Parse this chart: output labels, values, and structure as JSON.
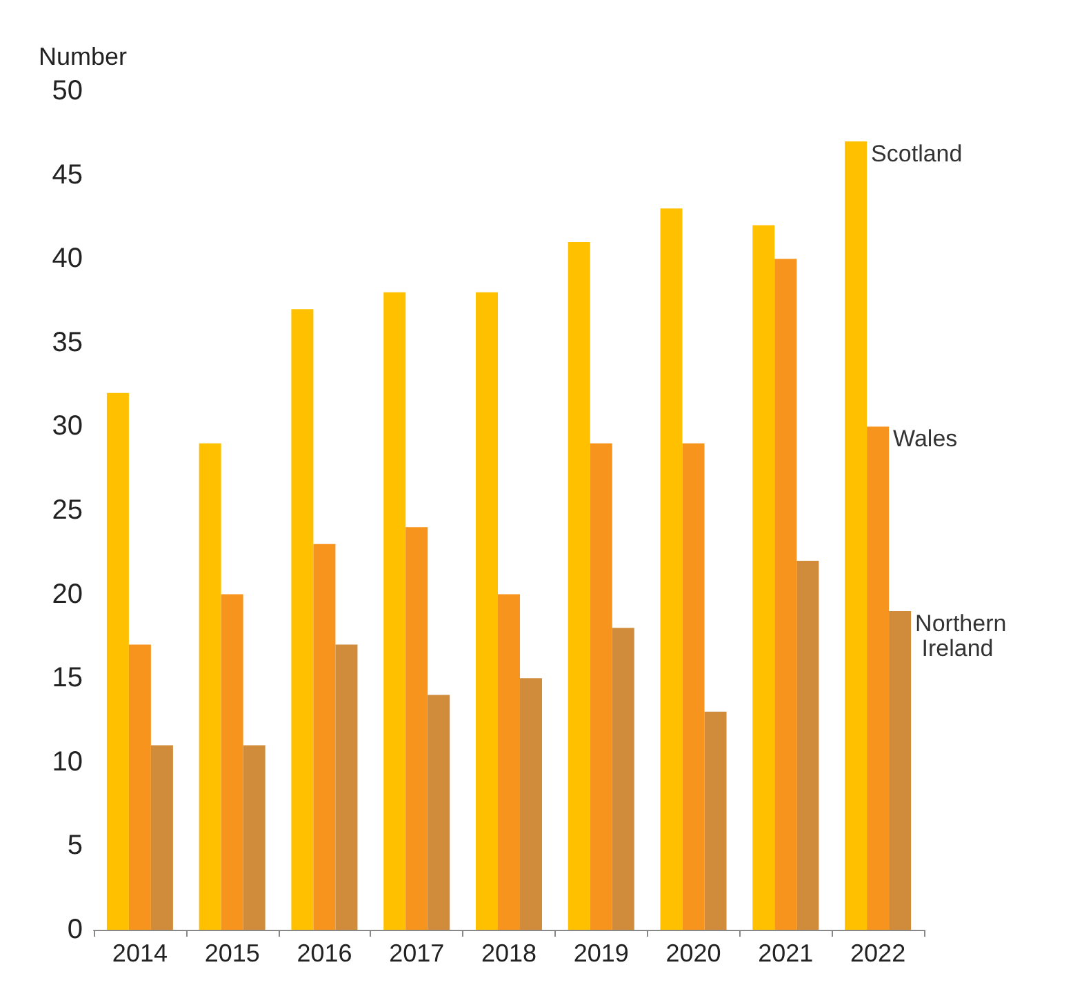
{
  "chart_data": {
    "type": "bar",
    "ylabel": "Number",
    "categories": [
      "2014",
      "2015",
      "2016",
      "2017",
      "2018",
      "2019",
      "2020",
      "2021",
      "2022"
    ],
    "series": [
      {
        "name": "Scotland",
        "color": "#ffc000",
        "values": [
          32,
          29,
          37,
          38,
          38,
          41,
          43,
          42,
          47
        ]
      },
      {
        "name": "Wales",
        "color": "#f7941d",
        "values": [
          17,
          20,
          23,
          24,
          20,
          29,
          29,
          40,
          30
        ]
      },
      {
        "name": "Northern Ireland",
        "color": "#d08b3b",
        "values": [
          11,
          11,
          17,
          14,
          15,
          18,
          13,
          22,
          19
        ]
      }
    ],
    "ylim": [
      0,
      50
    ],
    "yticks": [
      0,
      5,
      10,
      15,
      20,
      25,
      30,
      35,
      40,
      45,
      50
    ],
    "grid": false,
    "legend": false
  }
}
